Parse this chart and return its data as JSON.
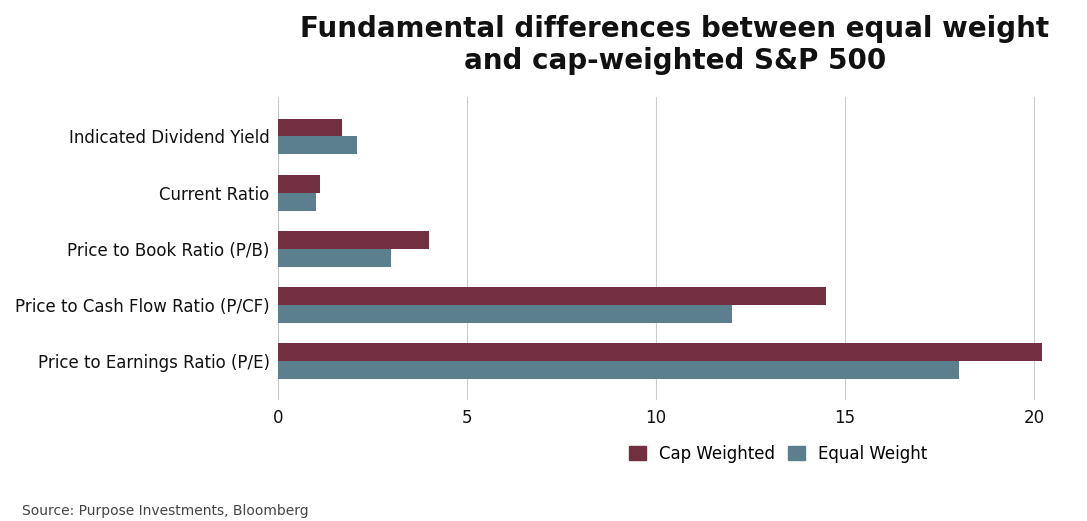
{
  "title": "Fundamental differences between equal weight\nand cap-weighted S&P 500",
  "categories": [
    "Price to Earnings Ratio (P/E)",
    "Price to Cash Flow Ratio (P/CF)",
    "Price to Book Ratio (P/B)",
    "Current Ratio",
    "Indicated Dividend Yield"
  ],
  "cap_weighted": [
    20.2,
    14.5,
    4.0,
    1.1,
    1.7
  ],
  "equal_weight": [
    18.0,
    12.0,
    3.0,
    1.0,
    2.1
  ],
  "cap_weighted_color": "#722F3F",
  "equal_weight_color": "#5B7F8C",
  "background_color": "#FFFFFF",
  "xlim": [
    0,
    21
  ],
  "xticks": [
    0,
    5,
    10,
    15,
    20
  ],
  "source_text": "Source: Purpose Investments, Bloomberg",
  "legend_cap_weighted": "Cap Weighted",
  "legend_equal_weight": "Equal Weight",
  "title_fontsize": 20,
  "bar_height": 0.32,
  "grid_color": "#CCCCCC",
  "label_fontsize": 12,
  "tick_fontsize": 12
}
